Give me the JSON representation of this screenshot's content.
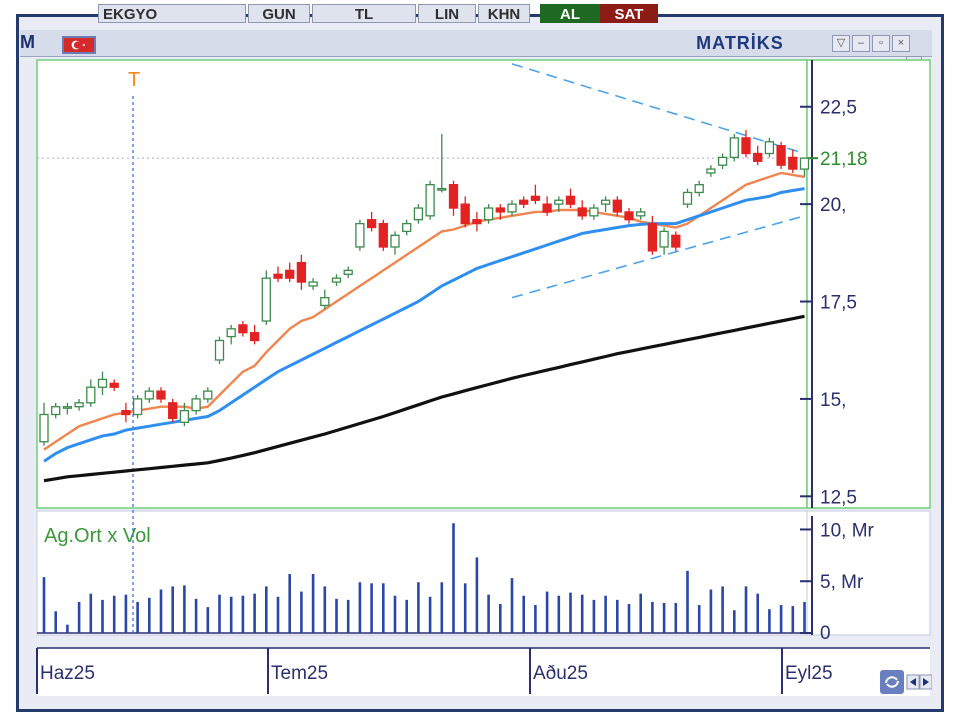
{
  "toolbar": {
    "symbol": "EKGYO",
    "period": "GUN",
    "currency": "TL",
    "scale": "LIN",
    "khn": "KHN",
    "buy": "AL",
    "sell": "SAT",
    "brand": "MATRİKS",
    "logo_letter": "M"
  },
  "chart_data": [
    {
      "type": "candlestick",
      "title": "",
      "marker_label": "T",
      "current_price": "21,18",
      "y_ticks": [
        "22,5",
        "20,",
        "17,5",
        "15,",
        "12,5"
      ],
      "y_tick_values": [
        22.5,
        20,
        17.5,
        15,
        12.5
      ],
      "ylim": [
        12.2,
        23.7
      ],
      "x_labels": [
        "Haz25",
        "Tem25",
        "Aðu25",
        "Eyl25"
      ],
      "x_label_indices": [
        0,
        18,
        40,
        62
      ],
      "candles": [
        [
          13.9,
          14.9,
          13.8,
          14.6
        ],
        [
          14.6,
          14.9,
          14.5,
          14.8
        ],
        [
          14.8,
          14.9,
          14.6,
          14.8
        ],
        [
          14.8,
          15.0,
          14.7,
          14.9
        ],
        [
          14.9,
          15.5,
          14.8,
          15.3
        ],
        [
          15.3,
          15.7,
          15.1,
          15.5
        ],
        [
          15.4,
          15.5,
          15.2,
          15.3
        ],
        [
          14.7,
          14.9,
          14.4,
          14.6
        ],
        [
          14.6,
          15.1,
          14.5,
          15.0
        ],
        [
          15.0,
          15.3,
          14.9,
          15.2
        ],
        [
          15.2,
          15.3,
          14.9,
          15.0
        ],
        [
          14.9,
          15.0,
          14.4,
          14.5
        ],
        [
          14.4,
          14.9,
          14.3,
          14.7
        ],
        [
          14.7,
          15.1,
          14.6,
          15.0
        ],
        [
          15.0,
          15.3,
          14.9,
          15.2
        ],
        [
          16.0,
          16.6,
          15.9,
          16.5
        ],
        [
          16.6,
          16.9,
          16.4,
          16.8
        ],
        [
          16.9,
          17.0,
          16.6,
          16.7
        ],
        [
          16.7,
          16.9,
          16.4,
          16.5
        ],
        [
          17.0,
          18.3,
          16.9,
          18.1
        ],
        [
          18.2,
          18.4,
          18.0,
          18.1
        ],
        [
          18.3,
          18.5,
          18.0,
          18.1
        ],
        [
          18.5,
          18.7,
          17.8,
          18.0
        ],
        [
          17.9,
          18.1,
          17.8,
          18.0
        ],
        [
          17.4,
          17.8,
          17.3,
          17.6
        ],
        [
          18.0,
          18.2,
          17.9,
          18.1
        ],
        [
          18.2,
          18.4,
          18.1,
          18.3
        ],
        [
          18.9,
          19.6,
          18.8,
          19.5
        ],
        [
          19.6,
          19.8,
          19.3,
          19.4
        ],
        [
          19.5,
          19.6,
          18.8,
          18.9
        ],
        [
          18.9,
          19.3,
          18.7,
          19.2
        ],
        [
          19.3,
          19.6,
          19.2,
          19.5
        ],
        [
          19.6,
          20.0,
          19.5,
          19.9
        ],
        [
          19.7,
          20.6,
          19.6,
          20.5
        ],
        [
          20.4,
          21.8,
          20.3,
          20.4
        ],
        [
          20.5,
          20.6,
          19.7,
          19.9
        ],
        [
          20.0,
          20.2,
          19.4,
          19.5
        ],
        [
          19.6,
          19.8,
          19.3,
          19.5
        ],
        [
          19.6,
          20.0,
          19.5,
          19.9
        ],
        [
          19.9,
          20.0,
          19.6,
          19.8
        ],
        [
          19.8,
          20.1,
          19.7,
          20.0
        ],
        [
          20.1,
          20.2,
          19.9,
          20.0
        ],
        [
          20.2,
          20.5,
          20.0,
          20.1
        ],
        [
          20.0,
          20.2,
          19.7,
          19.8
        ],
        [
          20.0,
          20.2,
          19.8,
          20.1
        ],
        [
          20.2,
          20.4,
          19.9,
          20.0
        ],
        [
          19.9,
          20.1,
          19.6,
          19.7
        ],
        [
          19.7,
          20.0,
          19.6,
          19.9
        ],
        [
          20.0,
          20.2,
          19.8,
          20.1
        ],
        [
          20.1,
          20.2,
          19.7,
          19.8
        ],
        [
          19.8,
          19.9,
          19.5,
          19.6
        ],
        [
          19.7,
          19.9,
          19.6,
          19.8
        ],
        [
          19.5,
          19.7,
          18.7,
          18.8
        ],
        [
          18.9,
          19.4,
          18.7,
          19.3
        ],
        [
          19.2,
          19.3,
          18.8,
          18.9
        ],
        [
          20.0,
          20.4,
          19.9,
          20.3
        ],
        [
          20.3,
          20.6,
          20.2,
          20.5
        ],
        [
          20.8,
          21.0,
          20.7,
          20.9
        ],
        [
          21.0,
          21.3,
          20.9,
          21.2
        ],
        [
          21.2,
          21.8,
          21.1,
          21.7
        ],
        [
          21.7,
          21.9,
          21.2,
          21.3
        ],
        [
          21.3,
          21.5,
          21.0,
          21.1
        ],
        [
          21.3,
          21.7,
          21.2,
          21.6
        ],
        [
          21.5,
          21.6,
          20.9,
          21.0
        ],
        [
          21.2,
          21.4,
          20.8,
          20.9
        ],
        [
          20.9,
          21.2,
          20.7,
          21.18
        ]
      ],
      "series": [
        {
          "name": "",
          "color": "#f08550",
          "values": [
            13.7,
            13.9,
            14.1,
            14.3,
            14.4,
            14.5,
            14.6,
            14.65,
            14.7,
            14.75,
            14.8,
            14.8,
            14.8,
            14.75,
            14.8,
            15.1,
            15.4,
            15.7,
            15.85,
            16.2,
            16.5,
            16.8,
            17.0,
            17.1,
            17.3,
            17.5,
            17.7,
            17.9,
            18.1,
            18.3,
            18.5,
            18.7,
            18.9,
            19.1,
            19.3,
            19.35,
            19.45,
            19.55,
            19.6,
            19.65,
            19.7,
            19.75,
            19.8,
            19.8,
            19.85,
            19.85,
            19.85,
            19.8,
            19.75,
            19.7,
            19.65,
            19.55,
            19.5,
            19.45,
            19.4,
            19.5,
            19.7,
            19.9,
            20.1,
            20.3,
            20.5,
            20.6,
            20.7,
            20.8,
            20.75,
            20.7
          ]
        },
        {
          "name": "",
          "color": "#2f8ff0",
          "values": [
            13.4,
            13.6,
            13.75,
            13.85,
            13.95,
            14.05,
            14.1,
            14.2,
            14.25,
            14.3,
            14.35,
            14.4,
            14.45,
            14.5,
            14.55,
            14.7,
            14.9,
            15.1,
            15.3,
            15.5,
            15.7,
            15.85,
            16.0,
            16.15,
            16.3,
            16.45,
            16.6,
            16.75,
            16.9,
            17.05,
            17.2,
            17.35,
            17.5,
            17.7,
            17.9,
            18.05,
            18.2,
            18.35,
            18.45,
            18.55,
            18.65,
            18.75,
            18.85,
            18.95,
            19.05,
            19.15,
            19.25,
            19.3,
            19.35,
            19.4,
            19.45,
            19.48,
            19.5,
            19.5,
            19.5,
            19.6,
            19.7,
            19.8,
            19.9,
            20.0,
            20.1,
            20.15,
            20.2,
            20.3,
            20.35,
            20.4
          ]
        },
        {
          "name": "",
          "color": "#111111",
          "values": [
            12.9,
            12.95,
            13.0,
            13.03,
            13.06,
            13.09,
            13.12,
            13.15,
            13.18,
            13.21,
            13.24,
            13.27,
            13.3,
            13.33,
            13.36,
            13.42,
            13.48,
            13.55,
            13.62,
            13.7,
            13.78,
            13.86,
            13.94,
            14.02,
            14.1,
            14.19,
            14.28,
            14.37,
            14.46,
            14.55,
            14.65,
            14.75,
            14.85,
            14.95,
            15.05,
            15.13,
            15.21,
            15.29,
            15.37,
            15.45,
            15.53,
            15.6,
            15.67,
            15.74,
            15.81,
            15.88,
            15.95,
            16.02,
            16.09,
            16.16,
            16.22,
            16.28,
            16.34,
            16.4,
            16.46,
            16.52,
            16.58,
            16.64,
            16.7,
            16.76,
            16.82,
            16.88,
            16.94,
            17.0,
            17.06,
            17.12
          ]
        }
      ],
      "trendlines": [
        {
          "x0": 40,
          "y0": 23.6,
          "x1": 65,
          "y1": 21.3
        },
        {
          "x0": 40,
          "y0": 17.6,
          "x1": 65,
          "y1": 19.7
        }
      ]
    },
    {
      "type": "bar",
      "title": "Ag.Ort x Vol",
      "y_ticks": [
        "10, Mr",
        "5, Mr",
        "0"
      ],
      "y_tick_values": [
        10,
        5,
        0
      ],
      "ylim": [
        0,
        11.3
      ],
      "values": [
        5.4,
        2.1,
        0.8,
        3.0,
        3.8,
        3.2,
        3.6,
        3.7,
        3.0,
        3.4,
        4.2,
        4.5,
        4.6,
        3.3,
        2.5,
        3.7,
        3.5,
        3.6,
        3.8,
        4.5,
        3.5,
        5.7,
        4.0,
        5.7,
        4.5,
        3.3,
        3.2,
        4.9,
        4.8,
        4.8,
        3.6,
        3.2,
        4.9,
        3.5,
        4.9,
        10.6,
        4.8,
        7.3,
        3.7,
        2.8,
        5.3,
        3.6,
        2.7,
        4.0,
        3.6,
        3.9,
        3.7,
        3.2,
        3.6,
        3.2,
        2.8,
        3.8,
        3.0,
        2.9,
        2.9,
        6.0,
        2.7,
        4.2,
        4.5,
        2.2,
        4.5,
        3.8,
        2.3,
        2.7,
        2.6,
        3.0
      ]
    }
  ]
}
